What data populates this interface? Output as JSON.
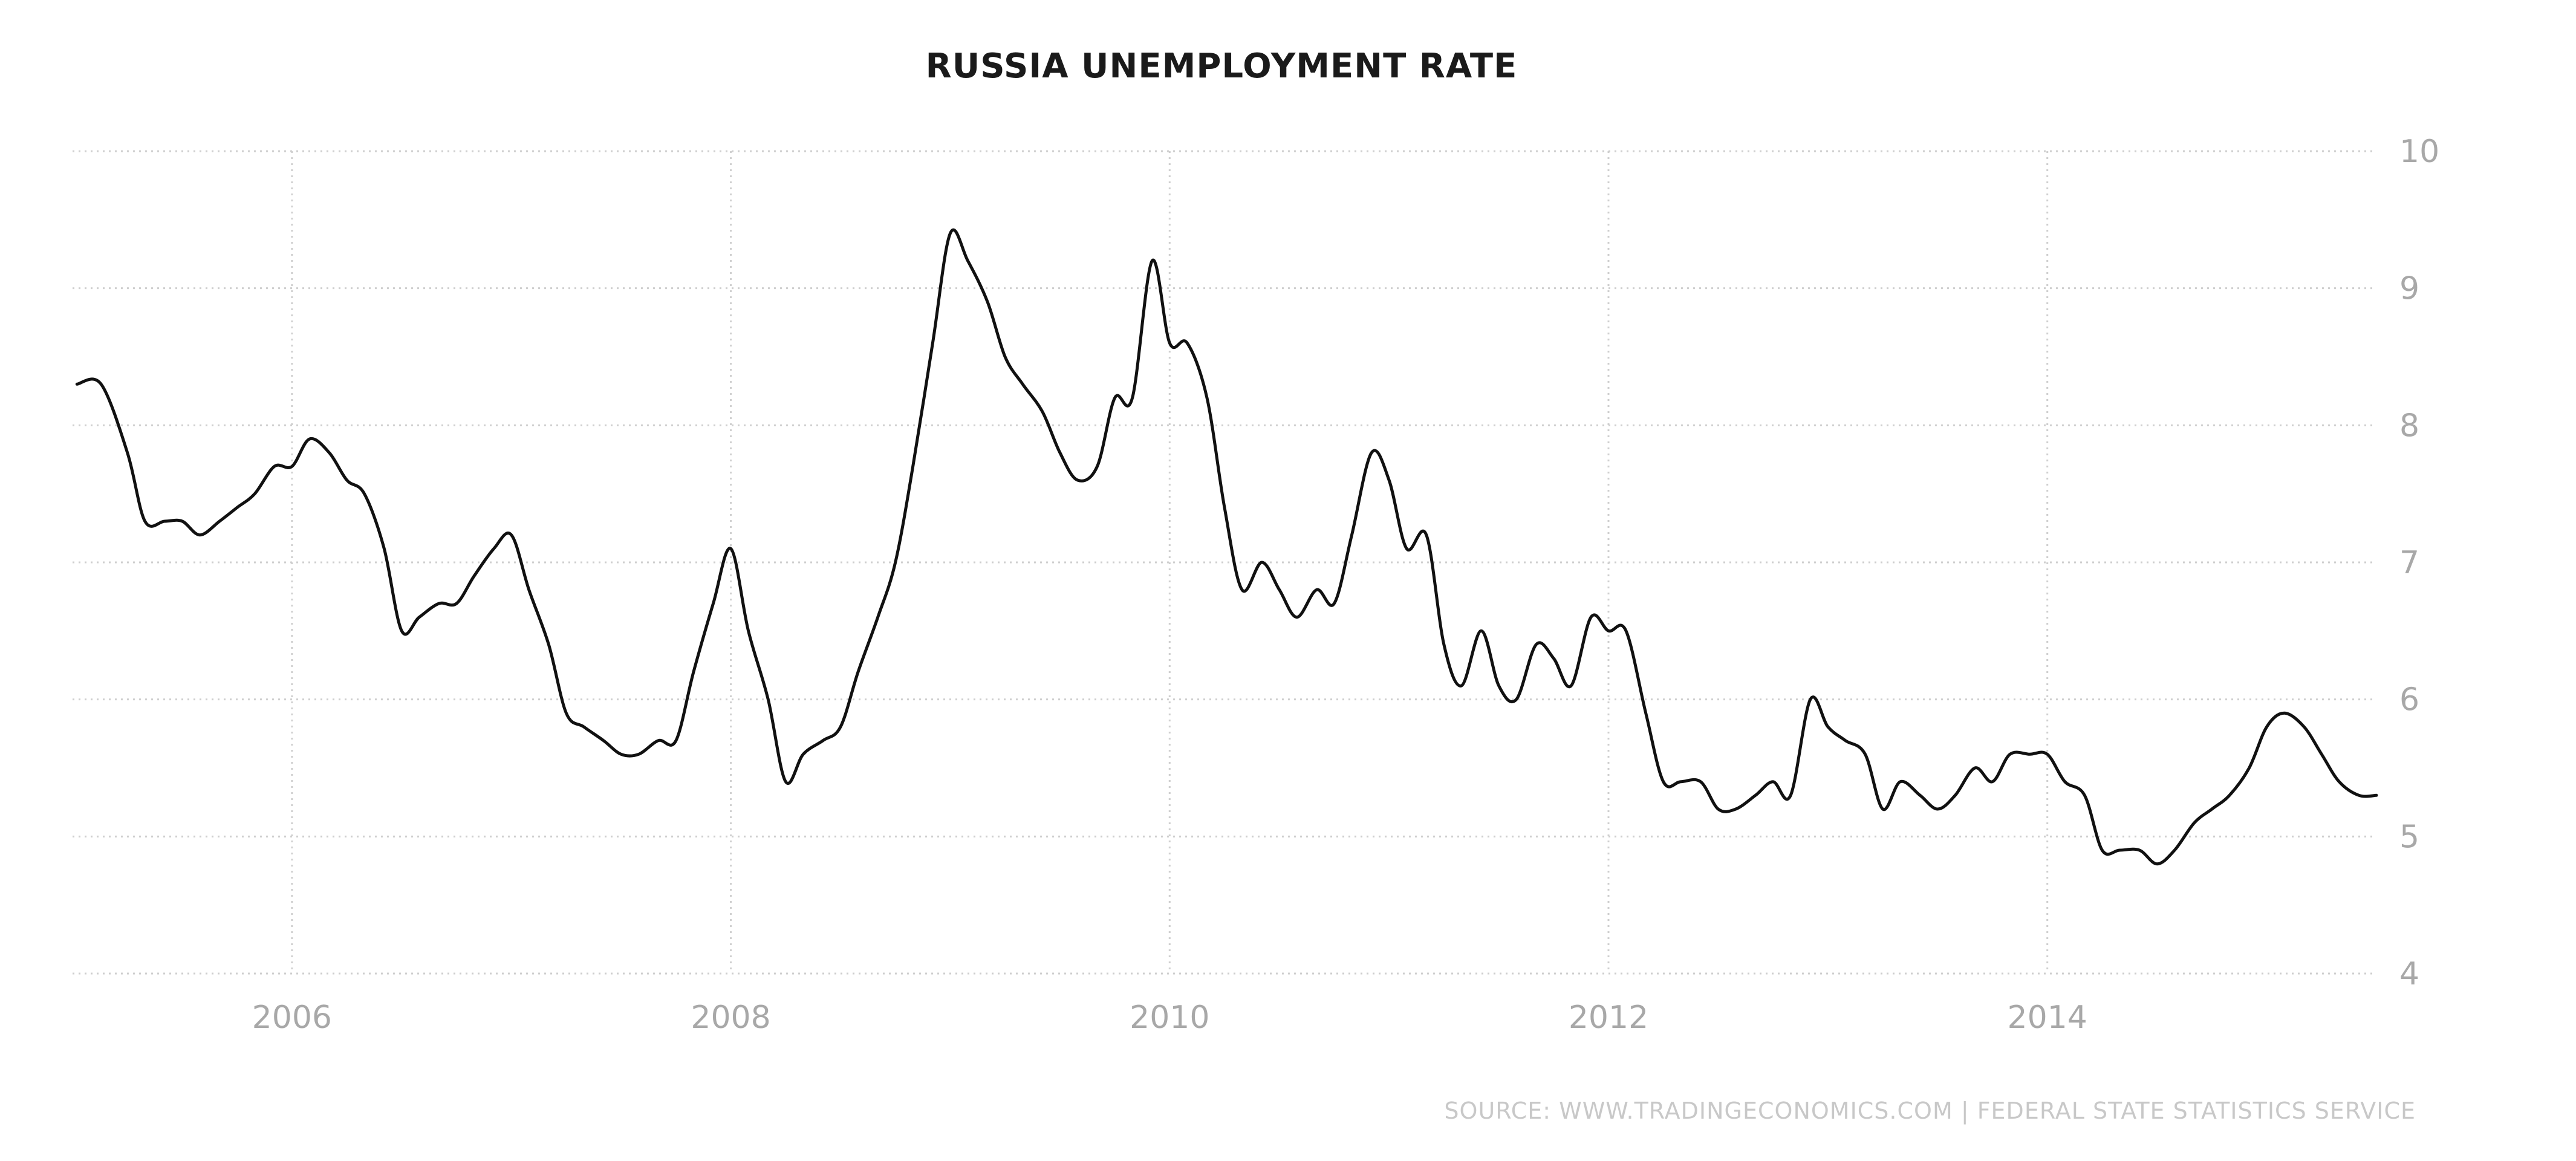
{
  "chart_data": {
    "type": "line",
    "title": "RUSSIA UNEMPLOYMENT RATE",
    "source": "SOURCE: WWW.TRADINGECONOMICS.COM | FEDERAL STATE STATISTICS SERVICE",
    "xlabel": "",
    "ylabel": "",
    "xlim": [
      2005.0,
      2015.5
    ],
    "ylim": [
      4,
      10
    ],
    "x_ticks": [
      2006,
      2008,
      2010,
      2012,
      2014
    ],
    "x_tick_labels": [
      "2006",
      "2008",
      "2010",
      "2012",
      "2014"
    ],
    "y_ticks": [
      4,
      5,
      6,
      7,
      8,
      9,
      10
    ],
    "y_tick_labels": [
      "4",
      "5",
      "6",
      "7",
      "8",
      "9",
      "10"
    ],
    "grid": true,
    "series": [
      {
        "color": "#111111",
        "x": [
          2005.02,
          2005.13,
          2005.25,
          2005.33,
          2005.42,
          2005.5,
          2005.58,
          2005.67,
          2005.75,
          2005.83,
          2005.92,
          2006.0,
          2006.08,
          2006.17,
          2006.25,
          2006.33,
          2006.42,
          2006.5,
          2006.58,
          2006.67,
          2006.75,
          2006.83,
          2006.92,
          2007.0,
          2007.08,
          2007.17,
          2007.25,
          2007.33,
          2007.42,
          2007.5,
          2007.58,
          2007.67,
          2007.75,
          2007.83,
          2007.92,
          2008.0,
          2008.08,
          2008.17,
          2008.25,
          2008.33,
          2008.42,
          2008.5,
          2008.58,
          2008.67,
          2008.75,
          2008.83,
          2008.92,
          2009.0,
          2009.08,
          2009.17,
          2009.25,
          2009.33,
          2009.42,
          2009.5,
          2009.58,
          2009.67,
          2009.75,
          2009.83,
          2009.92,
          2010.0,
          2010.08,
          2010.17,
          2010.25,
          2010.33,
          2010.42,
          2010.5,
          2010.58,
          2010.67,
          2010.75,
          2010.83,
          2010.92,
          2011.0,
          2011.08,
          2011.17,
          2011.25,
          2011.33,
          2011.42,
          2011.5,
          2011.58,
          2011.67,
          2011.75,
          2011.83,
          2011.92,
          2012.0,
          2012.08,
          2012.17,
          2012.25,
          2012.33,
          2012.42,
          2012.5,
          2012.58,
          2012.67,
          2012.75,
          2012.83,
          2012.92,
          2013.0,
          2013.08,
          2013.17,
          2013.25,
          2013.33,
          2013.42,
          2013.5,
          2013.58,
          2013.67,
          2013.75,
          2013.83,
          2013.92,
          2014.0,
          2014.08,
          2014.17,
          2014.25,
          2014.33,
          2014.42,
          2014.5,
          2014.58,
          2014.67,
          2014.75,
          2014.83,
          2014.92,
          2015.0,
          2015.08,
          2015.17,
          2015.25,
          2015.33,
          2015.42,
          2015.5
        ],
        "values": [
          8.3,
          8.3,
          7.8,
          7.3,
          7.3,
          7.3,
          7.2,
          7.3,
          7.4,
          7.5,
          7.7,
          7.7,
          7.9,
          7.8,
          7.6,
          7.5,
          7.1,
          6.5,
          6.6,
          6.7,
          6.7,
          6.9,
          7.1,
          7.2,
          6.8,
          6.4,
          5.9,
          5.8,
          5.7,
          5.6,
          5.6,
          5.7,
          5.7,
          6.2,
          6.7,
          7.1,
          6.5,
          6.0,
          5.4,
          5.6,
          5.7,
          5.8,
          6.2,
          6.6,
          7.0,
          7.7,
          8.6,
          9.4,
          9.2,
          8.9,
          8.5,
          8.3,
          8.1,
          7.8,
          7.6,
          7.7,
          8.2,
          8.2,
          9.2,
          8.6,
          8.6,
          8.2,
          7.4,
          6.8,
          7.0,
          6.8,
          6.6,
          6.8,
          6.7,
          7.2,
          7.8,
          7.6,
          7.1,
          7.2,
          6.4,
          6.1,
          6.5,
          6.1,
          6.0,
          6.4,
          6.3,
          6.1,
          6.6,
          6.5,
          6.5,
          5.9,
          5.4,
          5.4,
          5.4,
          5.2,
          5.2,
          5.3,
          5.4,
          5.3,
          6.0,
          5.8,
          5.7,
          5.6,
          5.2,
          5.4,
          5.3,
          5.2,
          5.3,
          5.5,
          5.4,
          5.6,
          5.6,
          5.6,
          5.4,
          5.3,
          4.9,
          4.9,
          4.9,
          4.8,
          4.9,
          5.1,
          5.2,
          5.3,
          5.5,
          5.8,
          5.9,
          5.8,
          5.6,
          5.4,
          5.3,
          5.3
        ]
      }
    ]
  }
}
